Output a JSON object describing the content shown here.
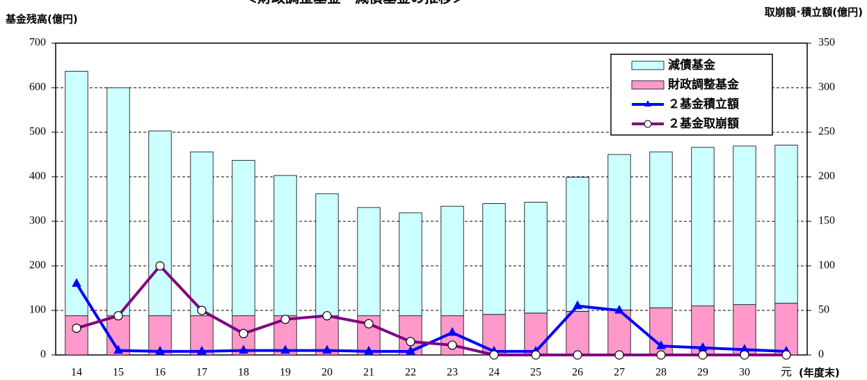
{
  "chart_data": {
    "type": "bar",
    "stacked": true,
    "title": "＜財政調整基金・減債基金の推移＞",
    "y_label": "基金残高(億円)",
    "y2_label": "取崩額･積立額(億円)",
    "x_label": "(年度末)",
    "categories": [
      "14",
      "15",
      "16",
      "17",
      "18",
      "19",
      "20",
      "21",
      "22",
      "23",
      "24",
      "25",
      "26",
      "27",
      "28",
      "29",
      "30",
      "元"
    ],
    "series": [
      {
        "name": "財政調整基金",
        "type": "bar",
        "color": "#ff99cc",
        "values": [
          88,
          88,
          88,
          88,
          88,
          88,
          88,
          88,
          88,
          88,
          91,
          94,
          98,
          101,
          106,
          110,
          113,
          116
        ]
      },
      {
        "name": "減債基金",
        "type": "bar",
        "color": "#ccffff",
        "values": [
          549,
          512,
          415,
          368,
          349,
          315,
          274,
          243,
          231,
          246,
          249,
          249,
          301,
          349,
          350,
          356,
          356,
          355
        ]
      },
      {
        "name": "２基金積立額",
        "type": "line",
        "marker": "triangle",
        "axis": "y2",
        "color": "#0000ff",
        "values": [
          80,
          5,
          4,
          4,
          5,
          5,
          5,
          4,
          4,
          25,
          4,
          4,
          55,
          50,
          10,
          8,
          6,
          4
        ]
      },
      {
        "name": "２基金取崩額",
        "type": "line",
        "marker": "circle",
        "axis": "y2",
        "color": "#800080",
        "values": [
          30,
          44,
          100,
          50,
          24,
          40,
          44,
          35,
          15,
          11,
          0,
          0,
          0,
          0,
          0,
          0,
          0,
          0
        ]
      }
    ],
    "ylim": [
      0,
      700
    ],
    "yticks": [
      0,
      100,
      200,
      300,
      400,
      500,
      600,
      700
    ],
    "y2lim": [
      0,
      350
    ],
    "y2ticks": [
      0,
      50,
      100,
      150,
      200,
      250,
      300,
      350
    ],
    "grid": true,
    "legend": "upper right"
  }
}
